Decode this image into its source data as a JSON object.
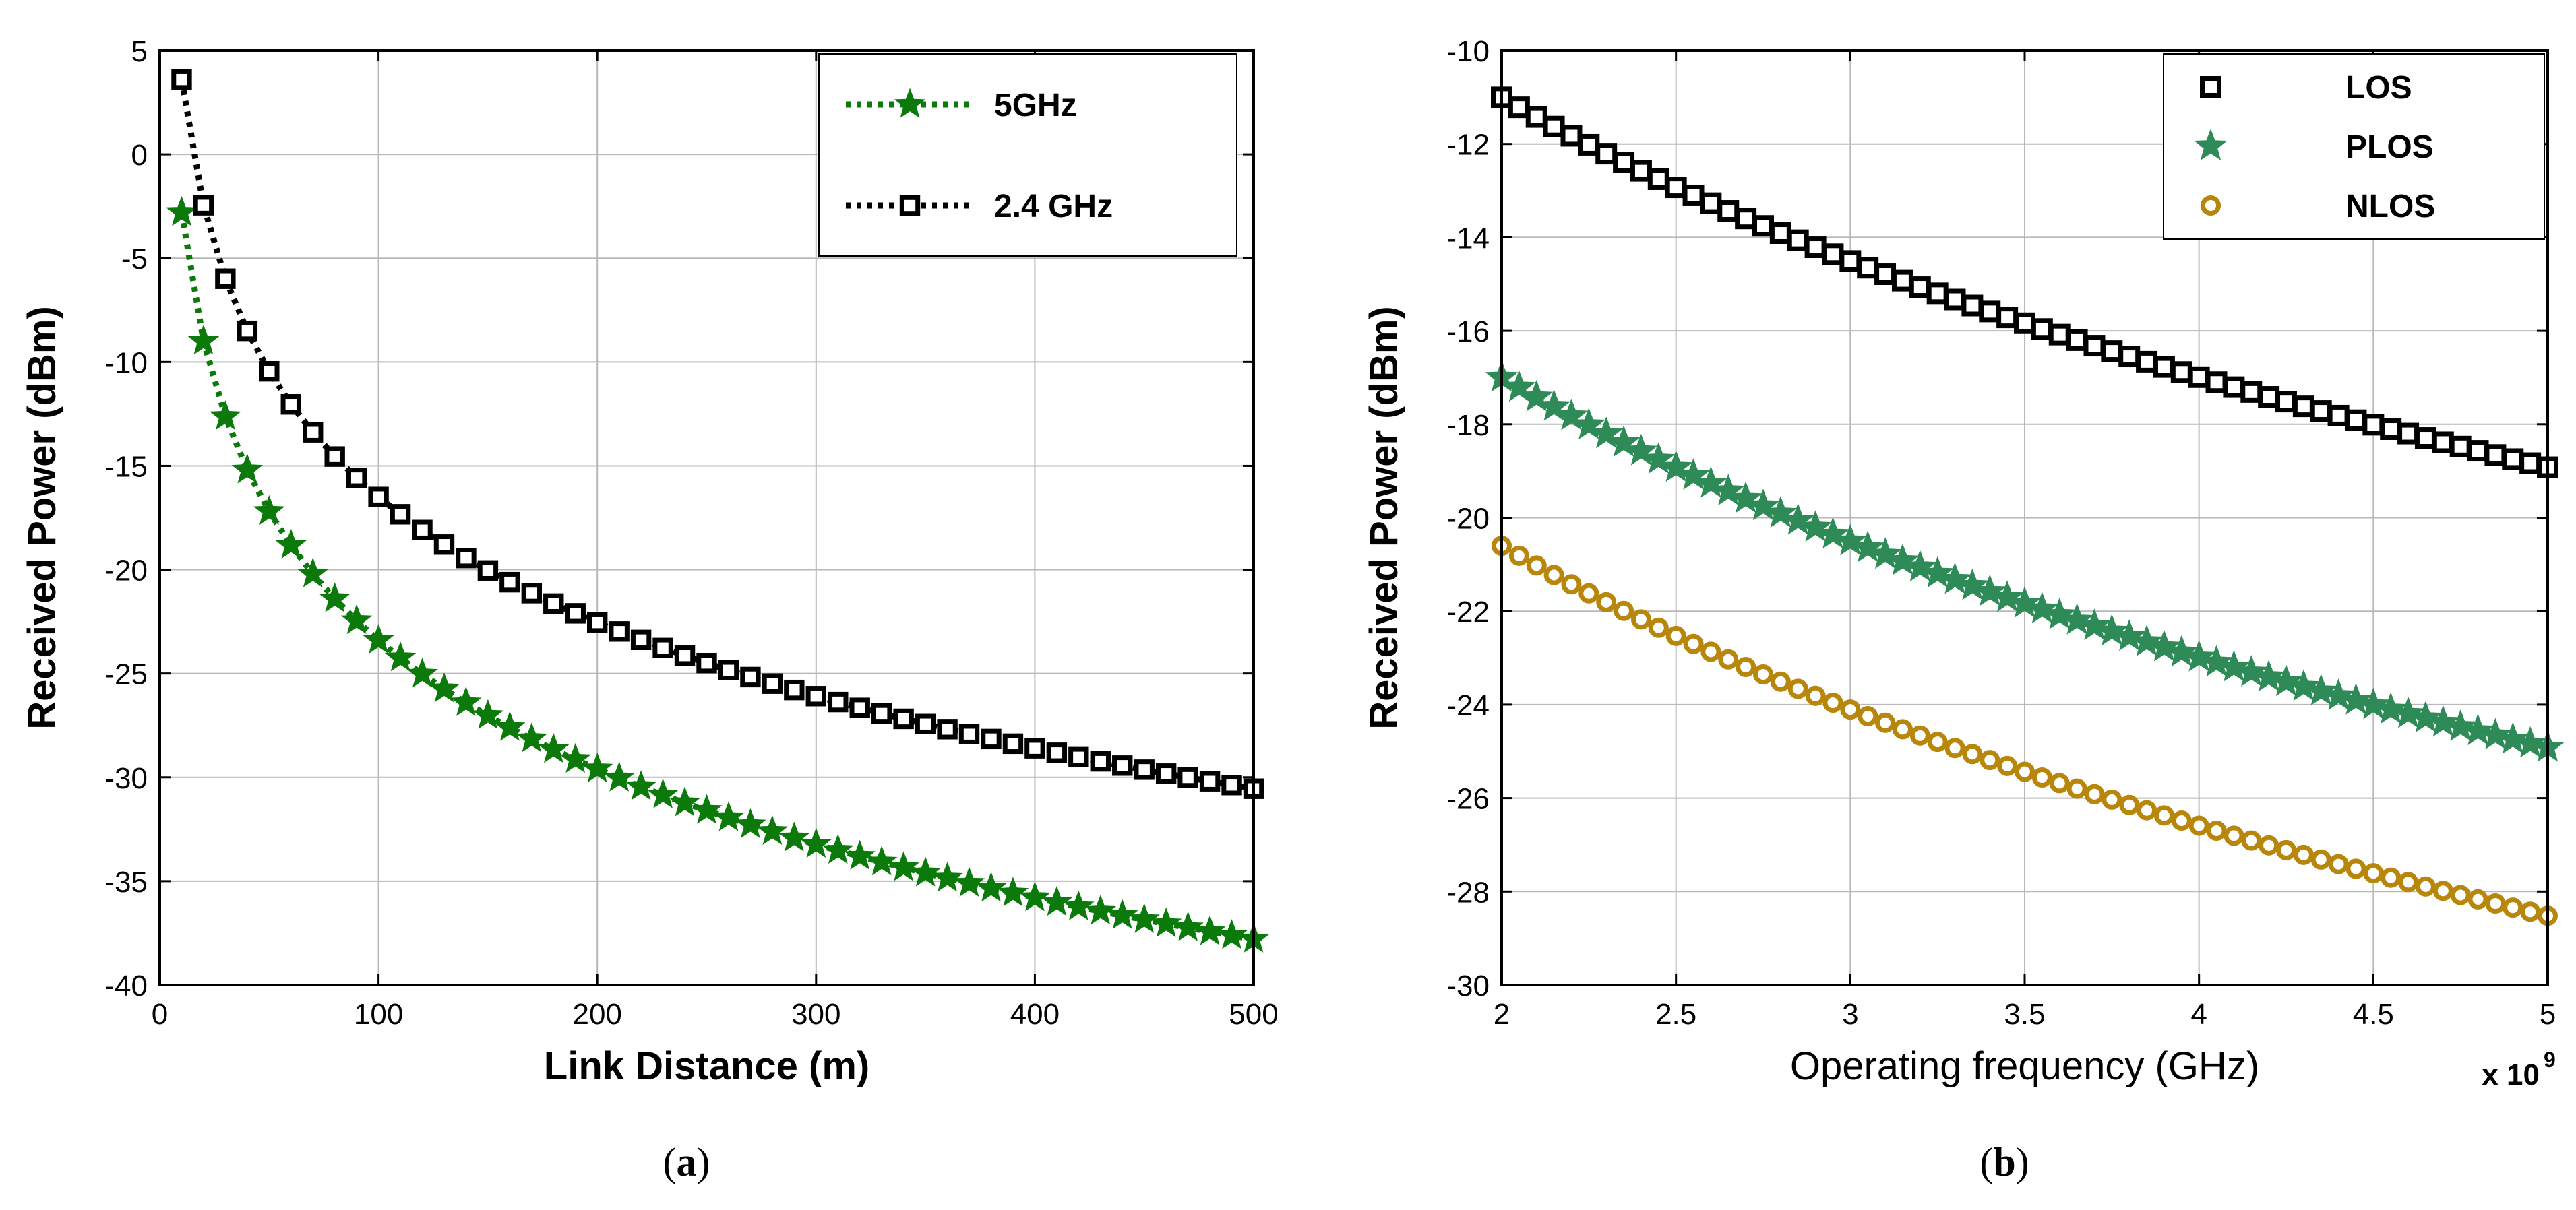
{
  "chart_data": [
    {
      "type": "line",
      "caption_letter": "a",
      "title": "",
      "xlabel": "Link Distance (m)",
      "ylabel": "Received Power (dBm)",
      "xlim": [
        0,
        500
      ],
      "ylim": [
        -40,
        5
      ],
      "xticks": [
        0,
        100,
        200,
        300,
        400,
        500
      ],
      "yticks": [
        5,
        0,
        -5,
        -10,
        -15,
        -20,
        -25,
        -30,
        -35,
        -40
      ],
      "grid": true,
      "legend_position": "top-right",
      "series": [
        {
          "name": "5GHz",
          "color": "#0b7a0b",
          "marker": "star",
          "line": "dotted",
          "model": {
            "kind": "log-distance",
            "x_start": 10,
            "x_end": 500,
            "x_step": 10,
            "p_at_10": -2.8,
            "slope_per_decade": -20.6
          }
        },
        {
          "name": "2.4 GHz",
          "color": "#000000",
          "marker": "square",
          "line": "dotted",
          "model": {
            "kind": "log-distance",
            "x_start": 10,
            "x_end": 500,
            "x_step": 10,
            "p_at_10": 3.6,
            "slope_per_decade": -20.1
          }
        }
      ]
    },
    {
      "type": "line",
      "caption_letter": "b",
      "title": "",
      "xlabel": "Operating frequency (GHz)",
      "ylabel": "Received Power (dBm)",
      "x_exponent_label": "x 10",
      "x_exponent_power": "9",
      "xlim": [
        2,
        5
      ],
      "ylim": [
        -30,
        -10
      ],
      "xticks": [
        2,
        2.5,
        3,
        3.5,
        4,
        4.5,
        5
      ],
      "yticks": [
        -10,
        -12,
        -14,
        -16,
        -18,
        -20,
        -22,
        -24,
        -26,
        -28,
        -30
      ],
      "grid": true,
      "legend_position": "top-right",
      "series": [
        {
          "name": "LOS",
          "color": "#000000",
          "marker": "square",
          "model": {
            "kind": "log-frequency",
            "x_start": 2,
            "x_end": 5,
            "points": 61,
            "p_at_start": -11.0,
            "slope_per_decade": -19.9
          }
        },
        {
          "name": "PLOS",
          "color": "#2e8b57",
          "marker": "star",
          "model": {
            "kind": "log-frequency",
            "x_start": 2,
            "x_end": 5,
            "points": 61,
            "p_at_start": -17.0,
            "slope_per_decade": -19.9
          }
        },
        {
          "name": "NLOS",
          "color": "#b8860b",
          "marker": "circle",
          "model": {
            "kind": "log-frequency",
            "x_start": 2,
            "x_end": 5,
            "points": 61,
            "p_at_start": -20.6,
            "slope_per_decade": -19.9
          }
        }
      ]
    }
  ]
}
